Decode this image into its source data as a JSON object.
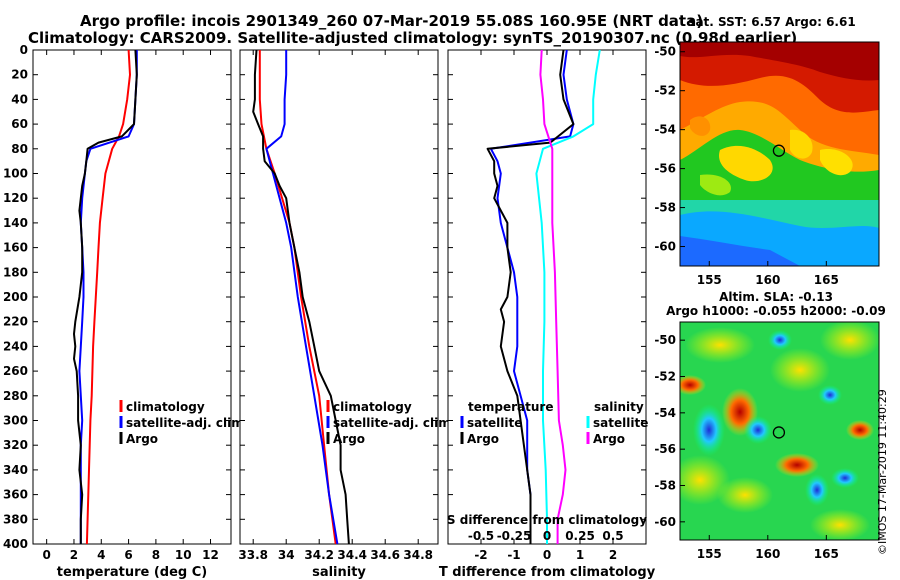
{
  "header": {
    "line1": "Argo profile: incois 2901349_260 07-Mar-2019 55.08S 160.95E (NRT data)",
    "line2": "Climatology: CARS2009. Satellite-adjusted climatology: synTS_20190307.nc (0.98d earlier)"
  },
  "watermark": "©IMOS 17-Mar-2019 11:40:29",
  "colors": {
    "climatology": "#ff0000",
    "satellite": "#0000ff",
    "argo": "#000000",
    "satellite_s": "#00ffff",
    "climatology_s": "#ff00ff"
  },
  "chart_data": [
    {
      "type": "line",
      "id": "temperature",
      "xlabel": "temperature (deg C)",
      "xlim": [
        -1,
        13.5
      ],
      "ylim": [
        0,
        400
      ],
      "x_ticks": [
        "0",
        "2",
        "4",
        "6",
        "8",
        "10",
        "12"
      ],
      "y_ticks": [
        "0",
        "20",
        "40",
        "60",
        "80",
        "100",
        "120",
        "140",
        "160",
        "180",
        "200",
        "220",
        "240",
        "260",
        "280",
        "300",
        "320",
        "340",
        "360",
        "380",
        "400"
      ],
      "legend": [
        "climatology",
        "satellite-adj. clim.",
        "Argo"
      ],
      "series": [
        {
          "name": "climatology",
          "color": "#ff0000",
          "depth": [
            0,
            20,
            40,
            60,
            70,
            80,
            100,
            120,
            140,
            160,
            180,
            200,
            220,
            240,
            260,
            280,
            300,
            320,
            340,
            360,
            380,
            400
          ],
          "values": [
            6.0,
            6.1,
            5.9,
            5.6,
            5.3,
            4.8,
            4.3,
            4.1,
            3.9,
            3.8,
            3.7,
            3.6,
            3.5,
            3.4,
            3.35,
            3.3,
            3.2,
            3.15,
            3.1,
            3.05,
            3.0,
            2.95
          ]
        },
        {
          "name": "satellite-adj. clim.",
          "color": "#0000ff",
          "depth": [
            0,
            20,
            40,
            60,
            70,
            80,
            90,
            100,
            120,
            140,
            160,
            180,
            200,
            220,
            240,
            260,
            280,
            300,
            320,
            340,
            360,
            380,
            400
          ],
          "values": [
            6.6,
            6.6,
            6.5,
            6.4,
            6.0,
            3.2,
            2.9,
            2.8,
            2.6,
            2.5,
            2.6,
            2.7,
            2.7,
            2.6,
            2.5,
            2.4,
            2.5,
            2.6,
            2.5,
            2.5,
            2.5,
            2.5,
            2.5
          ]
        },
        {
          "name": "Argo",
          "color": "#000000",
          "depth": [
            0,
            20,
            40,
            60,
            70,
            75,
            80,
            90,
            100,
            110,
            120,
            130,
            140,
            160,
            180,
            200,
            220,
            230,
            240,
            250,
            260,
            280,
            300,
            320,
            340,
            360,
            380,
            400
          ],
          "values": [
            6.5,
            6.6,
            6.5,
            6.4,
            5.5,
            3.8,
            3.0,
            2.9,
            2.8,
            2.6,
            2.5,
            2.4,
            2.5,
            2.6,
            2.6,
            2.4,
            2.1,
            2.0,
            2.1,
            2.0,
            2.2,
            2.3,
            2.3,
            2.5,
            2.4,
            2.6,
            2.5,
            2.5
          ]
        }
      ]
    },
    {
      "type": "line",
      "id": "salinity",
      "xlabel": "salinity",
      "xlim": [
        33.72,
        34.92
      ],
      "ylim": [
        0,
        400
      ],
      "x_ticks": [
        "33.8",
        "34",
        "34.2",
        "34.4",
        "34.6",
        "34.8"
      ],
      "legend": [
        "climatology",
        "satellite-adj. clim.",
        "Argo"
      ],
      "series": [
        {
          "name": "climatology",
          "color": "#ff0000",
          "depth": [
            0,
            40,
            60,
            80,
            100,
            140,
            160,
            200,
            240,
            280,
            320,
            360,
            400
          ],
          "values": [
            33.84,
            33.84,
            33.85,
            33.88,
            33.93,
            34.02,
            34.05,
            34.09,
            34.14,
            34.2,
            34.23,
            34.26,
            34.3
          ]
        },
        {
          "name": "satellite-adj. clim.",
          "color": "#0000ff",
          "depth": [
            0,
            20,
            40,
            60,
            70,
            80,
            100,
            140,
            160,
            200,
            240,
            280,
            320,
            360,
            400
          ],
          "values": [
            34.0,
            34.0,
            33.99,
            33.99,
            33.97,
            33.88,
            33.92,
            34.0,
            34.03,
            34.07,
            34.12,
            34.17,
            34.22,
            34.26,
            34.31
          ]
        },
        {
          "name": "Argo",
          "color": "#000000",
          "depth": [
            0,
            20,
            40,
            50,
            60,
            70,
            80,
            90,
            100,
            110,
            120,
            140,
            160,
            180,
            200,
            220,
            240,
            260,
            280,
            300,
            320,
            340,
            360,
            380,
            400
          ],
          "values": [
            33.82,
            33.81,
            33.81,
            33.8,
            33.83,
            33.86,
            33.86,
            33.87,
            33.93,
            33.96,
            34.0,
            34.02,
            34.05,
            34.08,
            34.1,
            34.14,
            34.17,
            34.2,
            34.27,
            34.3,
            34.33,
            34.33,
            34.36,
            34.37,
            34.38
          ]
        }
      ]
    },
    {
      "type": "line",
      "id": "difference",
      "xlabel": "T difference from climatology",
      "sublabel": "S difference from climatology",
      "xlim": [
        -3,
        3
      ],
      "ylim": [
        0,
        400
      ],
      "x_ticks": [
        "-2",
        "-1",
        "0",
        "1",
        "2"
      ],
      "s_ticks": [
        "-0.5",
        "-0.25",
        "0",
        "0.25",
        "0.5"
      ],
      "legend_temperature": [
        "temperature",
        "satellite",
        "Argo"
      ],
      "legend_salinity": [
        "salinity",
        "satellite",
        "Argo"
      ],
      "series": [
        {
          "name": "T satellite",
          "color": "#0000ff",
          "depth": [
            0,
            20,
            40,
            60,
            70,
            80,
            90,
            100,
            120,
            140,
            160,
            180,
            200,
            220,
            240,
            260,
            280,
            300,
            320,
            340,
            360,
            380,
            400
          ],
          "values": [
            0.6,
            0.5,
            0.6,
            0.8,
            0.7,
            -1.7,
            -1.5,
            -1.4,
            -1.5,
            -1.4,
            -1.2,
            -1.0,
            -0.9,
            -0.9,
            -0.9,
            -1.0,
            -0.8,
            -0.6,
            -0.6,
            -0.6,
            -0.5,
            -0.5,
            -0.5
          ]
        },
        {
          "name": "T Argo",
          "color": "#000000",
          "depth": [
            0,
            20,
            40,
            60,
            75,
            80,
            90,
            100,
            110,
            120,
            140,
            160,
            180,
            200,
            210,
            220,
            240,
            260,
            280,
            300,
            320,
            340,
            360,
            380,
            400
          ],
          "values": [
            0.5,
            0.4,
            0.5,
            0.8,
            0.1,
            -1.8,
            -1.6,
            -1.6,
            -1.5,
            -1.6,
            -1.2,
            -1.2,
            -1.1,
            -1.2,
            -1.4,
            -1.3,
            -1.4,
            -1.2,
            -0.9,
            -0.8,
            -0.7,
            -0.6,
            -0.5,
            -0.5,
            -0.5
          ]
        },
        {
          "name": "S satellite",
          "color": "#00ffff",
          "depth": [
            0,
            20,
            40,
            60,
            70,
            80,
            100,
            140,
            180,
            220,
            260,
            300,
            340,
            380,
            400
          ],
          "values": [
            0.4,
            0.37,
            0.35,
            0.35,
            0.2,
            -0.03,
            -0.08,
            -0.04,
            -0.02,
            -0.02,
            -0.03,
            -0.03,
            -0.01,
            0.0,
            0.0
          ]
        },
        {
          "name": "S Argo",
          "color": "#ff00ff",
          "depth": [
            0,
            20,
            40,
            60,
            80,
            100,
            140,
            180,
            220,
            260,
            300,
            320,
            340,
            360,
            380,
            400
          ],
          "values": [
            -0.04,
            -0.05,
            -0.03,
            -0.02,
            0.04,
            0.04,
            0.04,
            0.06,
            0.07,
            0.08,
            0.09,
            0.12,
            0.14,
            0.12,
            0.08,
            0.08
          ]
        }
      ]
    },
    {
      "type": "heatmap",
      "id": "sst-map",
      "title": "sat. SST: 6.57 Argo: 6.61",
      "xlim": [
        152.5,
        169.5
      ],
      "ylim": [
        -61,
        -49.5
      ],
      "x_ticks": [
        "155",
        "160",
        "165"
      ],
      "y_ticks": [
        "-50",
        "-52",
        "-54",
        "-56",
        "-58",
        "-60"
      ],
      "marker": {
        "lon": 160.95,
        "lat": -55.08
      }
    },
    {
      "type": "heatmap",
      "id": "sla-map",
      "title": "Altim. SLA: -0.13",
      "subtitle": "Argo h1000: -0.055 h2000: -0.09",
      "xlim": [
        152.5,
        169.5
      ],
      "ylim": [
        -61,
        -49
      ],
      "x_ticks": [
        "155",
        "160",
        "165"
      ],
      "y_ticks": [
        "-50",
        "-52",
        "-54",
        "-56",
        "-58",
        "-60"
      ],
      "marker": {
        "lon": 160.95,
        "lat": -55.08
      }
    }
  ]
}
